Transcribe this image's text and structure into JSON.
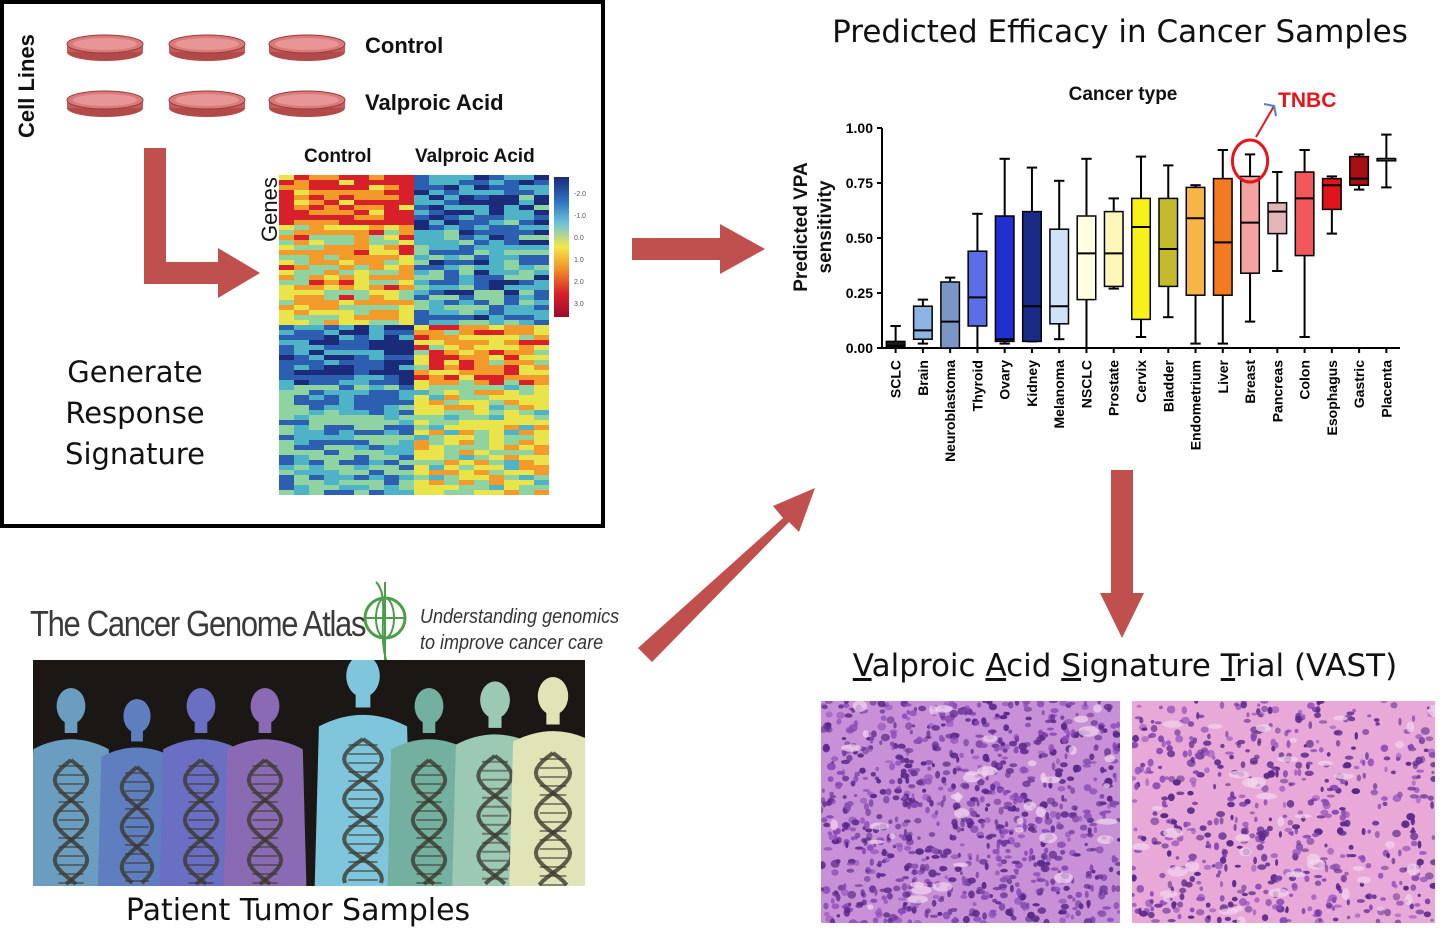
{
  "cell_panel": {
    "cell_lines_label": "Cell Lines",
    "row_labels": [
      "Control",
      "Valproic Acid"
    ],
    "heatmap": {
      "col_headers": [
        "Control",
        "Valproic Acid"
      ],
      "y_label": "Genes",
      "legend_ticks": [
        "-2.0",
        "-1.0",
        "0.0",
        "1.0",
        "2.0",
        "3.0"
      ]
    },
    "caption_lines": [
      "Generate Response",
      "Signature"
    ]
  },
  "tcga": {
    "logo_text": "The Cancer Genome Atlas",
    "tagline_lines": [
      "Understanding genomics",
      "to improve cancer care"
    ],
    "caption": "Patient Tumor Samples"
  },
  "trial": {
    "title_parts": [
      {
        "u": "V",
        "t": "alproic "
      },
      {
        "u": "A",
        "t": "cid "
      },
      {
        "u": "S",
        "t": "ignature "
      },
      {
        "u": "T",
        "t": "rial (VAST)"
      }
    ]
  },
  "colors": {
    "arrow": "#c0504d",
    "highlight": "#e8141c"
  },
  "chart_data": {
    "type": "boxplot",
    "title": "Predicted Efficacy in Cancer Samples",
    "subtitle": "Cancer type",
    "ylabel_lines": [
      "Predicted VPA",
      "sensitivity"
    ],
    "ylim": [
      0,
      1
    ],
    "yticks": [
      "0.00",
      "0.25",
      "0.50",
      "0.75",
      "1.00"
    ],
    "annotation": "TNBC",
    "annotation_category": "Breast",
    "categories": [
      "SCLC",
      "Brain",
      "Neuroblastoma",
      "Thyroid",
      "Ovary",
      "Kidney",
      "Melanoma",
      "NSCLC",
      "Prostate",
      "Cervix",
      "Bladder",
      "Endometrium",
      "Liver",
      "Breast",
      "Pancreas",
      "Colon",
      "Esophagus",
      "Gastric",
      "Placenta"
    ],
    "boxes": [
      {
        "min": 0.0,
        "q1": 0.0,
        "median": 0.01,
        "q3": 0.03,
        "max": 0.1,
        "color": "#1a1a1a"
      },
      {
        "min": 0.02,
        "q1": 0.04,
        "median": 0.08,
        "q3": 0.19,
        "max": 0.22,
        "color": "#8db4e2"
      },
      {
        "min": 0.0,
        "q1": 0.0,
        "median": 0.12,
        "q3": 0.3,
        "max": 0.32,
        "color": "#7a96c4"
      },
      {
        "min": 0.0,
        "q1": 0.1,
        "median": 0.23,
        "q3": 0.44,
        "max": 0.61,
        "color": "#5b6ee8"
      },
      {
        "min": 0.02,
        "q1": 0.03,
        "median": 0.04,
        "q3": 0.6,
        "max": 0.86,
        "color": "#1f2fd0"
      },
      {
        "min": 0.03,
        "q1": 0.03,
        "median": 0.19,
        "q3": 0.62,
        "max": 0.82,
        "color": "#1b2a86"
      },
      {
        "min": 0.04,
        "q1": 0.11,
        "median": 0.19,
        "q3": 0.54,
        "max": 0.76,
        "color": "#cfe2f7"
      },
      {
        "min": 0.0,
        "q1": 0.22,
        "median": 0.43,
        "q3": 0.6,
        "max": 0.86,
        "color": "#fffde2"
      },
      {
        "min": 0.27,
        "q1": 0.28,
        "median": 0.43,
        "q3": 0.62,
        "max": 0.68,
        "color": "#fff7b8"
      },
      {
        "min": 0.05,
        "q1": 0.13,
        "median": 0.55,
        "q3": 0.68,
        "max": 0.87,
        "color": "#f8f01a"
      },
      {
        "min": 0.14,
        "q1": 0.28,
        "median": 0.45,
        "q3": 0.68,
        "max": 0.83,
        "color": "#c4bb2c"
      },
      {
        "min": 0.02,
        "q1": 0.24,
        "median": 0.59,
        "q3": 0.73,
        "max": 0.74,
        "color": "#f7b548"
      },
      {
        "min": 0.02,
        "q1": 0.24,
        "median": 0.48,
        "q3": 0.77,
        "max": 0.9,
        "color": "#f47a22"
      },
      {
        "min": 0.12,
        "q1": 0.34,
        "median": 0.57,
        "q3": 0.78,
        "max": 0.88,
        "color": "#f4a3a3"
      },
      {
        "min": 0.35,
        "q1": 0.52,
        "median": 0.62,
        "q3": 0.66,
        "max": 0.8,
        "color": "#e2b6b6"
      },
      {
        "min": 0.05,
        "q1": 0.42,
        "median": 0.68,
        "q3": 0.8,
        "max": 0.9,
        "color": "#f2575b"
      },
      {
        "min": 0.52,
        "q1": 0.63,
        "median": 0.74,
        "q3": 0.77,
        "max": 0.78,
        "color": "#e0141c"
      },
      {
        "min": 0.72,
        "q1": 0.74,
        "median": 0.77,
        "q3": 0.87,
        "max": 0.88,
        "color": "#a50f14"
      },
      {
        "min": 0.73,
        "q1": 0.86,
        "median": 0.86,
        "q3": 0.86,
        "max": 0.97,
        "color": "#ffffff"
      }
    ]
  }
}
